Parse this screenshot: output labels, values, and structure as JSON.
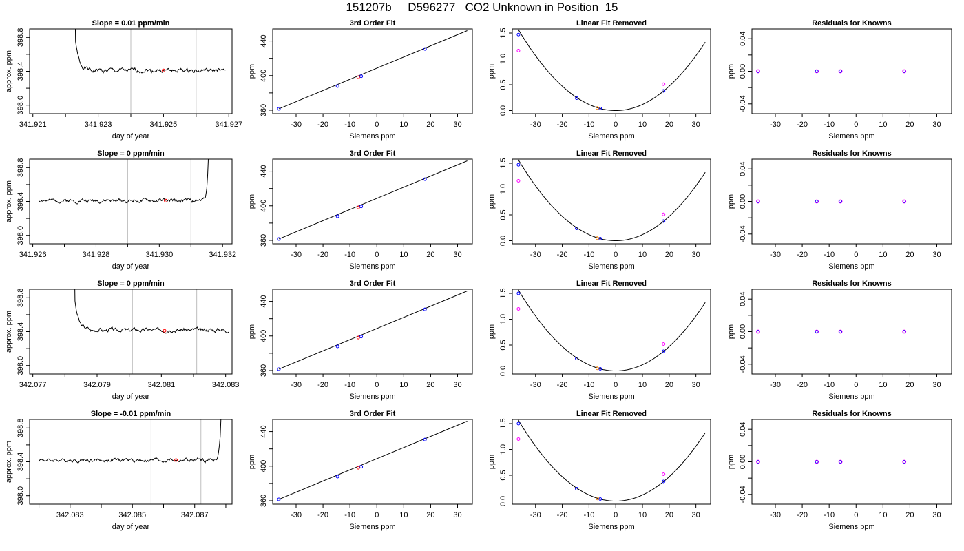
{
  "title": "151207b     D596277   CO2 Unknown in Position  15",
  "colors": {
    "line": "#000000",
    "red_point": "#ff0000",
    "blue_point": "#0000ff",
    "magenta_point": "#ff00ff",
    "orange_point": "#ff8c00",
    "vline": "#bebebe"
  },
  "chart_data": [
    {
      "type": "line",
      "row": 1,
      "panel": "time-series",
      "title": "Slope =  0.01  ppm/min",
      "xlabel": "day of year",
      "ylabel": "approx. ppm",
      "xlim": [
        341.9209,
        341.9271
      ],
      "ylim": [
        397.9,
        398.9
      ],
      "xticks": [
        "341.921",
        "341.923",
        "341.925",
        "341.927"
      ],
      "xtick_values": [
        341.921,
        341.923,
        341.925,
        341.927
      ],
      "xtick_minor": [
        341.922,
        341.924,
        341.926
      ],
      "yticks": [
        "398.0",
        "398.4",
        "398.8"
      ],
      "ytick_values": [
        398.0,
        398.4,
        398.8
      ],
      "ytick_minor": [
        398.2,
        398.6
      ],
      "vlines": [
        341.924,
        341.926
      ],
      "marker": {
        "x": 341.925,
        "y": 398.41
      },
      "spike": "start",
      "start": 341.9222,
      "end": 341.9269,
      "level": 398.41,
      "seed": 1
    },
    {
      "type": "scatter",
      "row": 1,
      "panel": "fit",
      "title": "3rd Order Fit",
      "xlabel": "Siemens ppm",
      "ylabel": "ppm",
      "xlim": [
        -38.7,
        35.5
      ],
      "ylim": [
        356,
        454
      ],
      "xticks": [
        "-30",
        "-20",
        "-10",
        "0",
        "10",
        "20",
        "30"
      ],
      "xtick_values": [
        -30,
        -20,
        -10,
        0,
        10,
        20,
        30
      ],
      "yticks": [
        "360",
        "400",
        "440"
      ],
      "ytick_values": [
        360,
        400,
        440
      ],
      "ytick_minor": [
        380,
        420
      ],
      "points_x": [
        -36.4,
        -14.6,
        -5.8,
        17.9
      ],
      "points_y": [
        361.6,
        387.9,
        399.2,
        430.8
      ],
      "red_point": [
        -6.9,
        398.1
      ]
    },
    {
      "type": "scatter",
      "row": 1,
      "panel": "resid",
      "title": "Linear Fit Removed",
      "xlabel": "Siemens ppm",
      "ylabel": "ppm",
      "xlim": [
        -38.7,
        35.5
      ],
      "ylim": [
        -0.06,
        1.58
      ],
      "xticks": [
        "-30",
        "-20",
        "-10",
        "0",
        "10",
        "20",
        "30"
      ],
      "xtick_values": [
        -30,
        -20,
        -10,
        0,
        10,
        20,
        30
      ],
      "yticks": [
        "0.0",
        "0.5",
        "1.0",
        "1.5"
      ],
      "ytick_values": [
        0,
        0.5,
        1.0,
        1.5
      ],
      "curve_a": 0.00118,
      "curve_b": 0.0015,
      "blue_x": [
        -36.4,
        -14.6,
        -5.8,
        17.9
      ],
      "blue_y": [
        1.47,
        0.24,
        0.04,
        0.38
      ],
      "magenta_x": [
        -36.4,
        17.9
      ],
      "magenta_y": [
        1.16,
        0.51
      ],
      "orange": [
        -6.9,
        0.05
      ]
    },
    {
      "type": "scatter",
      "row": 1,
      "panel": "known",
      "title": "Residuals for Knowns",
      "xlabel": "Siemens ppm",
      "ylabel": "ppm",
      "xlim": [
        -38.7,
        35.5
      ],
      "ylim": [
        -0.052,
        0.052
      ],
      "xticks": [
        "-30",
        "-20",
        "-10",
        "0",
        "10",
        "20",
        "30"
      ],
      "xtick_values": [
        -30,
        -20,
        -10,
        0,
        10,
        20,
        30
      ],
      "yticks": [
        "-0.04",
        "0.00",
        "0.04"
      ],
      "ytick_values": [
        -0.04,
        0,
        0.04
      ],
      "ytick_minor": [
        -0.02,
        0.02
      ],
      "points_x": [
        -36.4,
        -14.6,
        -5.8,
        17.9
      ],
      "points_y": [
        0,
        0,
        0,
        0
      ]
    },
    {
      "type": "line",
      "row": 2,
      "panel": "time-series",
      "title": "Slope =  0  ppm/min",
      "xlabel": "day of year",
      "ylabel": "approx. ppm",
      "xlim": [
        341.9259,
        341.9323
      ],
      "ylim": [
        397.9,
        398.9
      ],
      "xticks": [
        "341.926",
        "341.928",
        "341.930",
        "341.932"
      ],
      "xtick_values": [
        341.926,
        341.928,
        341.93,
        341.932
      ],
      "xtick_minor": [
        341.927,
        341.929,
        341.931
      ],
      "yticks": [
        "398.0",
        "398.4",
        "398.8"
      ],
      "ytick_values": [
        398.0,
        398.4,
        398.8
      ],
      "ytick_minor": [
        398.2,
        398.6
      ],
      "vlines": [
        341.929,
        341.931
      ],
      "marker": {
        "x": 341.9302,
        "y": 398.41
      },
      "spike": "end",
      "start": 341.9262,
      "end": 341.9316,
      "level": 398.41,
      "seed": 2
    },
    {
      "type": "scatter",
      "row": 2,
      "panel": "fit",
      "title": "3rd Order Fit",
      "xlabel": "Siemens ppm",
      "ylabel": "ppm",
      "xlim": [
        -38.7,
        35.5
      ],
      "ylim": [
        356,
        454
      ],
      "xticks": [
        "-30",
        "-20",
        "-10",
        "0",
        "10",
        "20",
        "30"
      ],
      "xtick_values": [
        -30,
        -20,
        -10,
        0,
        10,
        20,
        30
      ],
      "yticks": [
        "360",
        "400",
        "440"
      ],
      "ytick_values": [
        360,
        400,
        440
      ],
      "ytick_minor": [
        380,
        420
      ],
      "points_x": [
        -36.4,
        -14.6,
        -5.8,
        17.9
      ],
      "points_y": [
        361.6,
        387.9,
        399.2,
        430.8
      ],
      "red_point": [
        -6.9,
        398.1
      ]
    },
    {
      "type": "scatter",
      "row": 2,
      "panel": "resid",
      "title": "Linear Fit Removed",
      "xlabel": "Siemens ppm",
      "ylabel": "ppm",
      "xlim": [
        -38.7,
        35.5
      ],
      "ylim": [
        -0.06,
        1.58
      ],
      "xticks": [
        "-30",
        "-20",
        "-10",
        "0",
        "10",
        "20",
        "30"
      ],
      "xtick_values": [
        -30,
        -20,
        -10,
        0,
        10,
        20,
        30
      ],
      "yticks": [
        "0.0",
        "0.5",
        "1.0",
        "1.5"
      ],
      "ytick_values": [
        0,
        0.5,
        1.0,
        1.5
      ],
      "curve_a": 0.00118,
      "curve_b": 0.0015,
      "blue_x": [
        -36.4,
        -14.6,
        -5.8,
        17.9
      ],
      "blue_y": [
        1.47,
        0.24,
        0.04,
        0.38
      ],
      "magenta_x": [
        -36.4,
        17.9
      ],
      "magenta_y": [
        1.16,
        0.51
      ],
      "orange": [
        -6.9,
        0.05
      ]
    },
    {
      "type": "scatter",
      "row": 2,
      "panel": "known",
      "title": "Residuals for Knowns",
      "xlabel": "Siemens ppm",
      "ylabel": "ppm",
      "xlim": [
        -38.7,
        35.5
      ],
      "ylim": [
        -0.052,
        0.052
      ],
      "xticks": [
        "-30",
        "-20",
        "-10",
        "0",
        "10",
        "20",
        "30"
      ],
      "xtick_values": [
        -30,
        -20,
        -10,
        0,
        10,
        20,
        30
      ],
      "yticks": [
        "-0.04",
        "0.00",
        "0.04"
      ],
      "ytick_values": [
        -0.04,
        0,
        0.04
      ],
      "ytick_minor": [
        -0.02,
        0.02
      ],
      "points_x": [
        -36.4,
        -14.6,
        -5.8,
        17.9
      ],
      "points_y": [
        0,
        0,
        0,
        0
      ]
    },
    {
      "type": "line",
      "row": 3,
      "panel": "time-series",
      "title": "Slope =  0  ppm/min",
      "xlabel": "day of year",
      "ylabel": "approx. ppm",
      "xlim": [
        342.0769,
        342.0832
      ],
      "ylim": [
        397.9,
        398.9
      ],
      "xticks": [
        "342.077",
        "342.079",
        "342.081",
        "342.083"
      ],
      "xtick_values": [
        342.077,
        342.079,
        342.081,
        342.083
      ],
      "xtick_minor": [
        342.078,
        342.08,
        342.082
      ],
      "yticks": [
        "398.0",
        "398.4",
        "398.8"
      ],
      "ytick_values": [
        398.0,
        398.4,
        398.8
      ],
      "ytick_minor": [
        398.2,
        398.6
      ],
      "vlines": [
        342.0801,
        342.0821
      ],
      "marker": {
        "x": 342.0811,
        "y": 398.41
      },
      "spike": "start",
      "start": 342.0782,
      "end": 342.0831,
      "level": 398.42,
      "seed": 3
    },
    {
      "type": "scatter",
      "row": 3,
      "panel": "fit",
      "title": "3rd Order Fit",
      "xlabel": "Siemens ppm",
      "ylabel": "ppm",
      "xlim": [
        -38.7,
        35.5
      ],
      "ylim": [
        356,
        454
      ],
      "xticks": [
        "-30",
        "-20",
        "-10",
        "0",
        "10",
        "20",
        "30"
      ],
      "xtick_values": [
        -30,
        -20,
        -10,
        0,
        10,
        20,
        30
      ],
      "yticks": [
        "360",
        "400",
        "440"
      ],
      "ytick_values": [
        360,
        400,
        440
      ],
      "ytick_minor": [
        380,
        420
      ],
      "points_x": [
        -36.4,
        -14.6,
        -5.8,
        17.9
      ],
      "points_y": [
        361.6,
        387.9,
        399.2,
        430.8
      ],
      "red_point": [
        -6.9,
        398.1
      ]
    },
    {
      "type": "scatter",
      "row": 3,
      "panel": "resid",
      "title": "Linear Fit Removed",
      "xlabel": "Siemens ppm",
      "ylabel": "ppm",
      "xlim": [
        -38.7,
        35.5
      ],
      "ylim": [
        -0.06,
        1.58
      ],
      "xticks": [
        "-30",
        "-20",
        "-10",
        "0",
        "10",
        "20",
        "30"
      ],
      "xtick_values": [
        -30,
        -20,
        -10,
        0,
        10,
        20,
        30
      ],
      "yticks": [
        "0.0",
        "0.5",
        "1.0",
        "1.5"
      ],
      "ytick_values": [
        0,
        0.5,
        1.0,
        1.5
      ],
      "curve_a": 0.00118,
      "curve_b": 0.0015,
      "blue_x": [
        -36.4,
        -14.6,
        -5.8,
        17.9
      ],
      "blue_y": [
        1.5,
        0.24,
        0.04,
        0.38
      ],
      "magenta_x": [
        -36.4,
        17.9
      ],
      "magenta_y": [
        1.2,
        0.52
      ],
      "orange": [
        -6.9,
        0.05
      ]
    },
    {
      "type": "scatter",
      "row": 3,
      "panel": "known",
      "title": "Residuals for Knowns",
      "xlabel": "Siemens ppm",
      "ylabel": "ppm",
      "xlim": [
        -38.7,
        35.5
      ],
      "ylim": [
        -0.052,
        0.052
      ],
      "xticks": [
        "-30",
        "-20",
        "-10",
        "0",
        "10",
        "20",
        "30"
      ],
      "xtick_values": [
        -30,
        -20,
        -10,
        0,
        10,
        20,
        30
      ],
      "yticks": [
        "-0.04",
        "0.00",
        "0.04"
      ],
      "ytick_values": [
        -0.04,
        0,
        0.04
      ],
      "ytick_minor": [
        -0.02,
        0.02
      ],
      "points_x": [
        -36.4,
        -14.6,
        -5.8,
        17.9
      ],
      "points_y": [
        0,
        0,
        0,
        0
      ]
    },
    {
      "type": "line",
      "row": 4,
      "panel": "time-series",
      "title": "Slope =  -0.01  ppm/min",
      "xlabel": "day of year",
      "ylabel": "approx. ppm",
      "xlim": [
        342.0817,
        342.0882
      ],
      "ylim": [
        397.9,
        398.9
      ],
      "xticks": [
        "342.083",
        "342.085",
        "342.087"
      ],
      "xtick_values": [
        342.083,
        342.085,
        342.087
      ],
      "xtick_minor": [
        342.082,
        342.084,
        342.086,
        342.088
      ],
      "yticks": [
        "398.0",
        "398.4",
        "398.8"
      ],
      "ytick_values": [
        398.0,
        398.4,
        398.8
      ],
      "ytick_minor": [
        398.2,
        398.6
      ],
      "vlines": [
        342.0856,
        342.0872
      ],
      "marker": {
        "x": 342.0864,
        "y": 398.42
      },
      "spike": "end",
      "start": 342.082,
      "end": 342.0879,
      "level": 398.42,
      "seed": 4
    },
    {
      "type": "scatter",
      "row": 4,
      "panel": "fit",
      "title": "3rd Order Fit",
      "xlabel": "Siemens ppm",
      "ylabel": "ppm",
      "xlim": [
        -38.7,
        35.5
      ],
      "ylim": [
        356,
        454
      ],
      "xticks": [
        "-30",
        "-20",
        "-10",
        "0",
        "10",
        "20",
        "30"
      ],
      "xtick_values": [
        -30,
        -20,
        -10,
        0,
        10,
        20,
        30
      ],
      "yticks": [
        "360",
        "400",
        "440"
      ],
      "ytick_values": [
        360,
        400,
        440
      ],
      "ytick_minor": [
        380,
        420
      ],
      "points_x": [
        -36.4,
        -14.6,
        -5.8,
        17.9
      ],
      "points_y": [
        361.6,
        387.9,
        399.2,
        430.8
      ],
      "red_point": [
        -6.9,
        398.1
      ]
    },
    {
      "type": "scatter",
      "row": 4,
      "panel": "resid",
      "title": "Linear Fit Removed",
      "xlabel": "Siemens ppm",
      "ylabel": "ppm",
      "xlim": [
        -38.7,
        35.5
      ],
      "ylim": [
        -0.06,
        1.58
      ],
      "xticks": [
        "-30",
        "-20",
        "-10",
        "0",
        "10",
        "20",
        "30"
      ],
      "xtick_values": [
        -30,
        -20,
        -10,
        0,
        10,
        20,
        30
      ],
      "yticks": [
        "0.0",
        "0.5",
        "1.0",
        "1.5"
      ],
      "ytick_values": [
        0,
        0.5,
        1.0,
        1.5
      ],
      "curve_a": 0.00118,
      "curve_b": 0.0015,
      "blue_x": [
        -36.4,
        -14.6,
        -5.8,
        17.9
      ],
      "blue_y": [
        1.5,
        0.24,
        0.04,
        0.38
      ],
      "magenta_x": [
        -36.4,
        17.9
      ],
      "magenta_y": [
        1.2,
        0.52
      ],
      "orange": [
        -6.9,
        0.05
      ]
    },
    {
      "type": "scatter",
      "row": 4,
      "panel": "known",
      "title": "Residuals for Knowns",
      "xlabel": "Siemens ppm",
      "ylabel": "ppm",
      "xlim": [
        -38.7,
        35.5
      ],
      "ylim": [
        -0.052,
        0.052
      ],
      "xticks": [
        "-30",
        "-20",
        "-10",
        "0",
        "10",
        "20",
        "30"
      ],
      "xtick_values": [
        -30,
        -20,
        -10,
        0,
        10,
        20,
        30
      ],
      "yticks": [
        "-0.04",
        "0.00",
        "0.04"
      ],
      "ytick_values": [
        -0.04,
        0,
        0.04
      ],
      "ytick_minor": [
        -0.02,
        0.02
      ],
      "points_x": [
        -36.4,
        -14.6,
        -5.8,
        17.9
      ],
      "points_y": [
        0,
        0,
        0,
        0
      ]
    }
  ]
}
